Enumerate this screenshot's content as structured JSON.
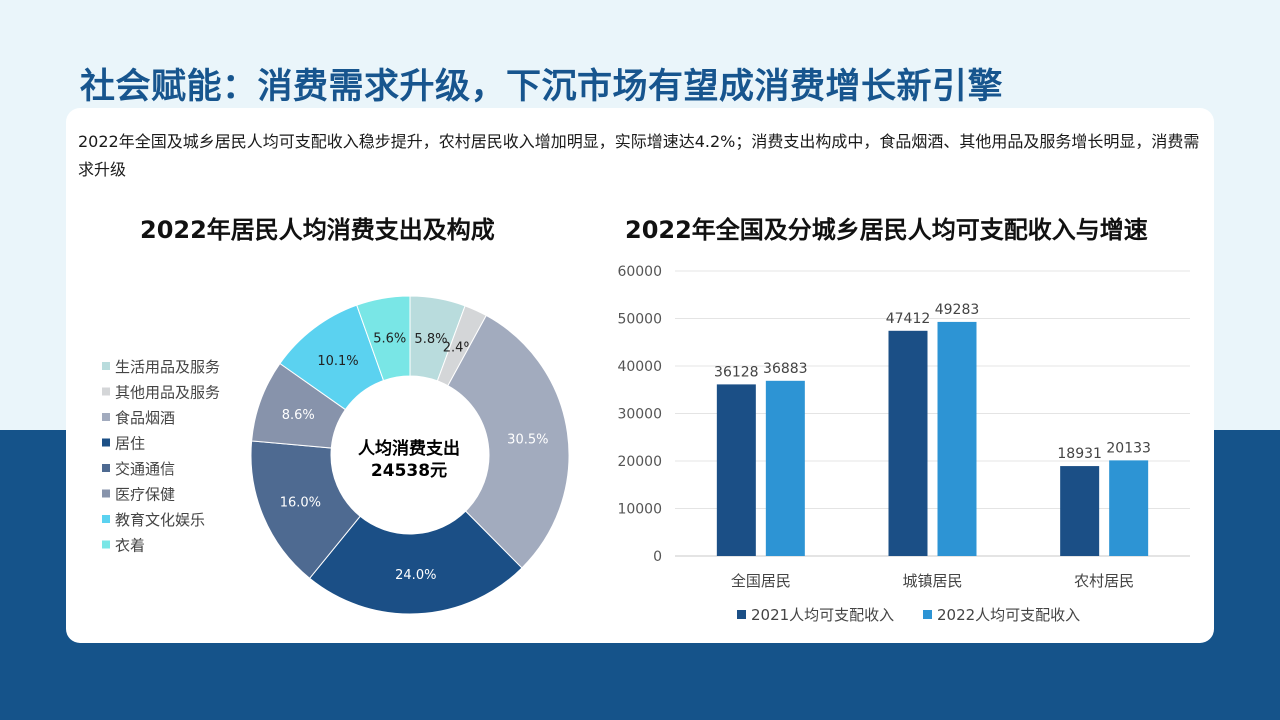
{
  "page": {
    "title": "社会赋能：消费需求升级，下沉市场有望成消费增长新引擎",
    "description": "2022年全国及城乡居民人均可支配收入稳步提升，农村居民收入增加明显，实际增速达4.2%；消费支出构成中，食品烟酒、其他用品及服务增长明显，消费需求升级"
  },
  "colors": {
    "background_top": "#eaf5fa",
    "background_bottom": "#15538a",
    "title": "#17558e"
  },
  "chart_data": [
    {
      "type": "pie",
      "title": "2022年居民人均消费支出及构成",
      "center_label": [
        "人均消费支出",
        "24538元"
      ],
      "legend_position": "left",
      "slices": [
        {
          "name": "生活用品及服务",
          "value": 5.8,
          "label": "5.8%",
          "color": "#b9dcdd"
        },
        {
          "name": "其他用品及服务",
          "value": 2.4,
          "label": "2.4%",
          "color": "#d4d6d8"
        },
        {
          "name": "食品烟酒",
          "value": 30.5,
          "label": "30.5%",
          "color": "#a2abbe"
        },
        {
          "name": "居住",
          "value": 24.0,
          "label": "24.0%",
          "color": "#1b4f86"
        },
        {
          "name": "交通通信",
          "value": 16.0,
          "label": "16.0%",
          "color": "#4e6a91"
        },
        {
          "name": "医疗保健",
          "value": 8.6,
          "label": "8.6%",
          "color": "#8793ab"
        },
        {
          "name": "教育文化娱乐",
          "value": 10.1,
          "label": "10.1%",
          "color": "#5bd2f0"
        },
        {
          "name": "衣着",
          "value": 5.6,
          "label": "5.6%",
          "color": "#79e6e6"
        }
      ]
    },
    {
      "type": "bar",
      "title": "2022年全国及分城乡居民人均可支配收入与增速",
      "categories": [
        "全国居民",
        "城镇居民",
        "农村居民"
      ],
      "series": [
        {
          "name": "2021人均可支配收入",
          "values": [
            36128,
            47412,
            18931
          ],
          "color": "#1b4f86"
        },
        {
          "name": "2022人均可支配收入",
          "values": [
            36883,
            49283,
            20133
          ],
          "color": "#2d94d4"
        }
      ],
      "ylim": [
        0,
        60000
      ],
      "yticks": [
        0,
        10000,
        20000,
        30000,
        40000,
        50000,
        60000
      ],
      "grid": true,
      "legend_position": "bottom"
    }
  ]
}
